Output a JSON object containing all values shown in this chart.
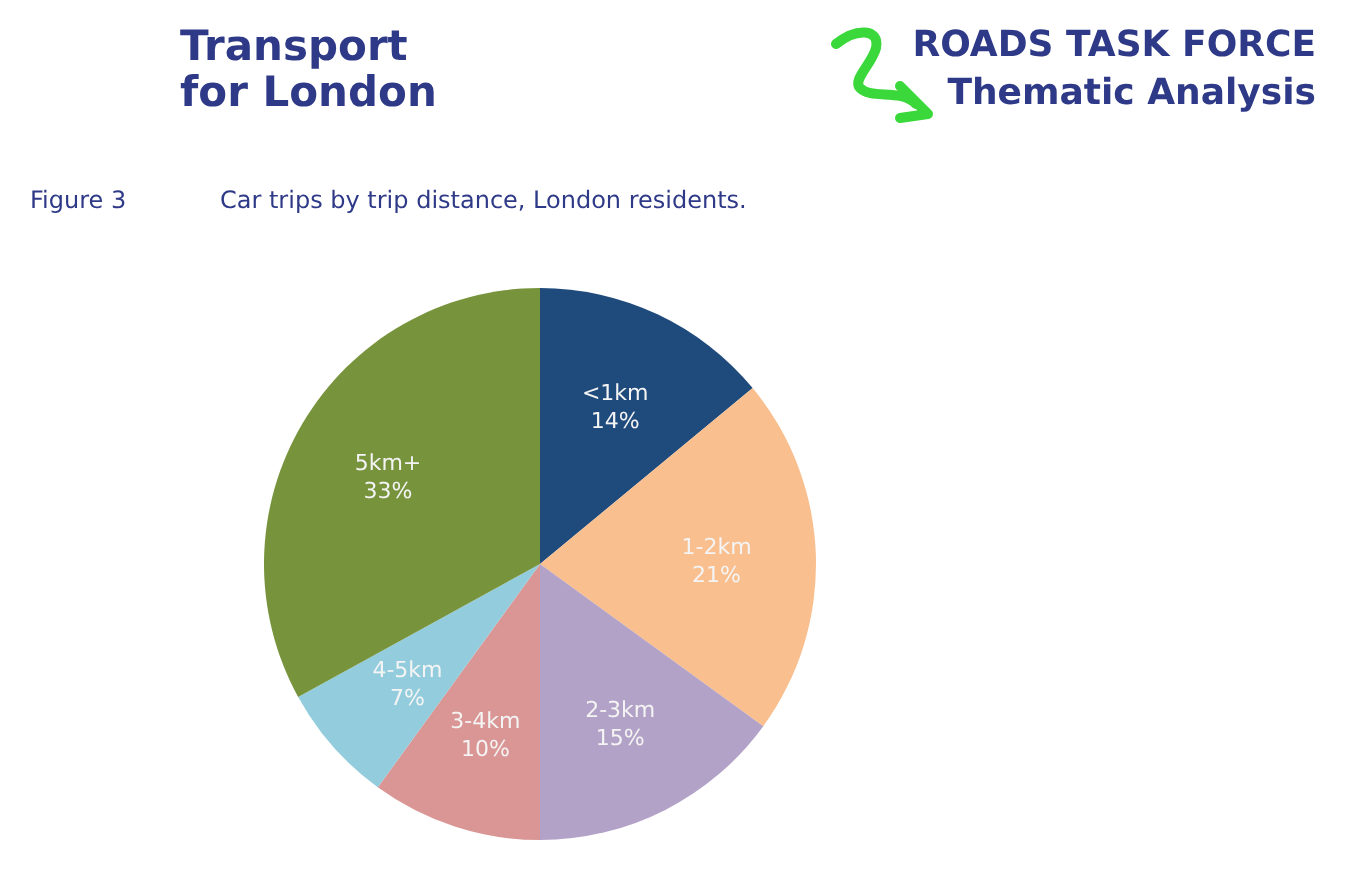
{
  "chart_data": {
    "type": "pie",
    "title": "Car trips by trip distance, London residents.",
    "annotations": [
      "Transport for London",
      "ROADS TASK FORCE",
      "Thematic Analysis",
      "Figure 3"
    ],
    "categories": [
      "<1km",
      "1-2km",
      "2-3km",
      "3-4km",
      "4-5km",
      "5km+"
    ],
    "values": [
      14,
      21,
      15,
      10,
      7,
      33
    ],
    "value_labels": [
      "14%",
      "21%",
      "15%",
      "10%",
      "7%",
      "33%"
    ],
    "colors": [
      "#1f4a7c",
      "#f9bf8f",
      "#b3a2c7",
      "#d99694",
      "#93cddd",
      "#77933c"
    ],
    "legend": false
  }
}
